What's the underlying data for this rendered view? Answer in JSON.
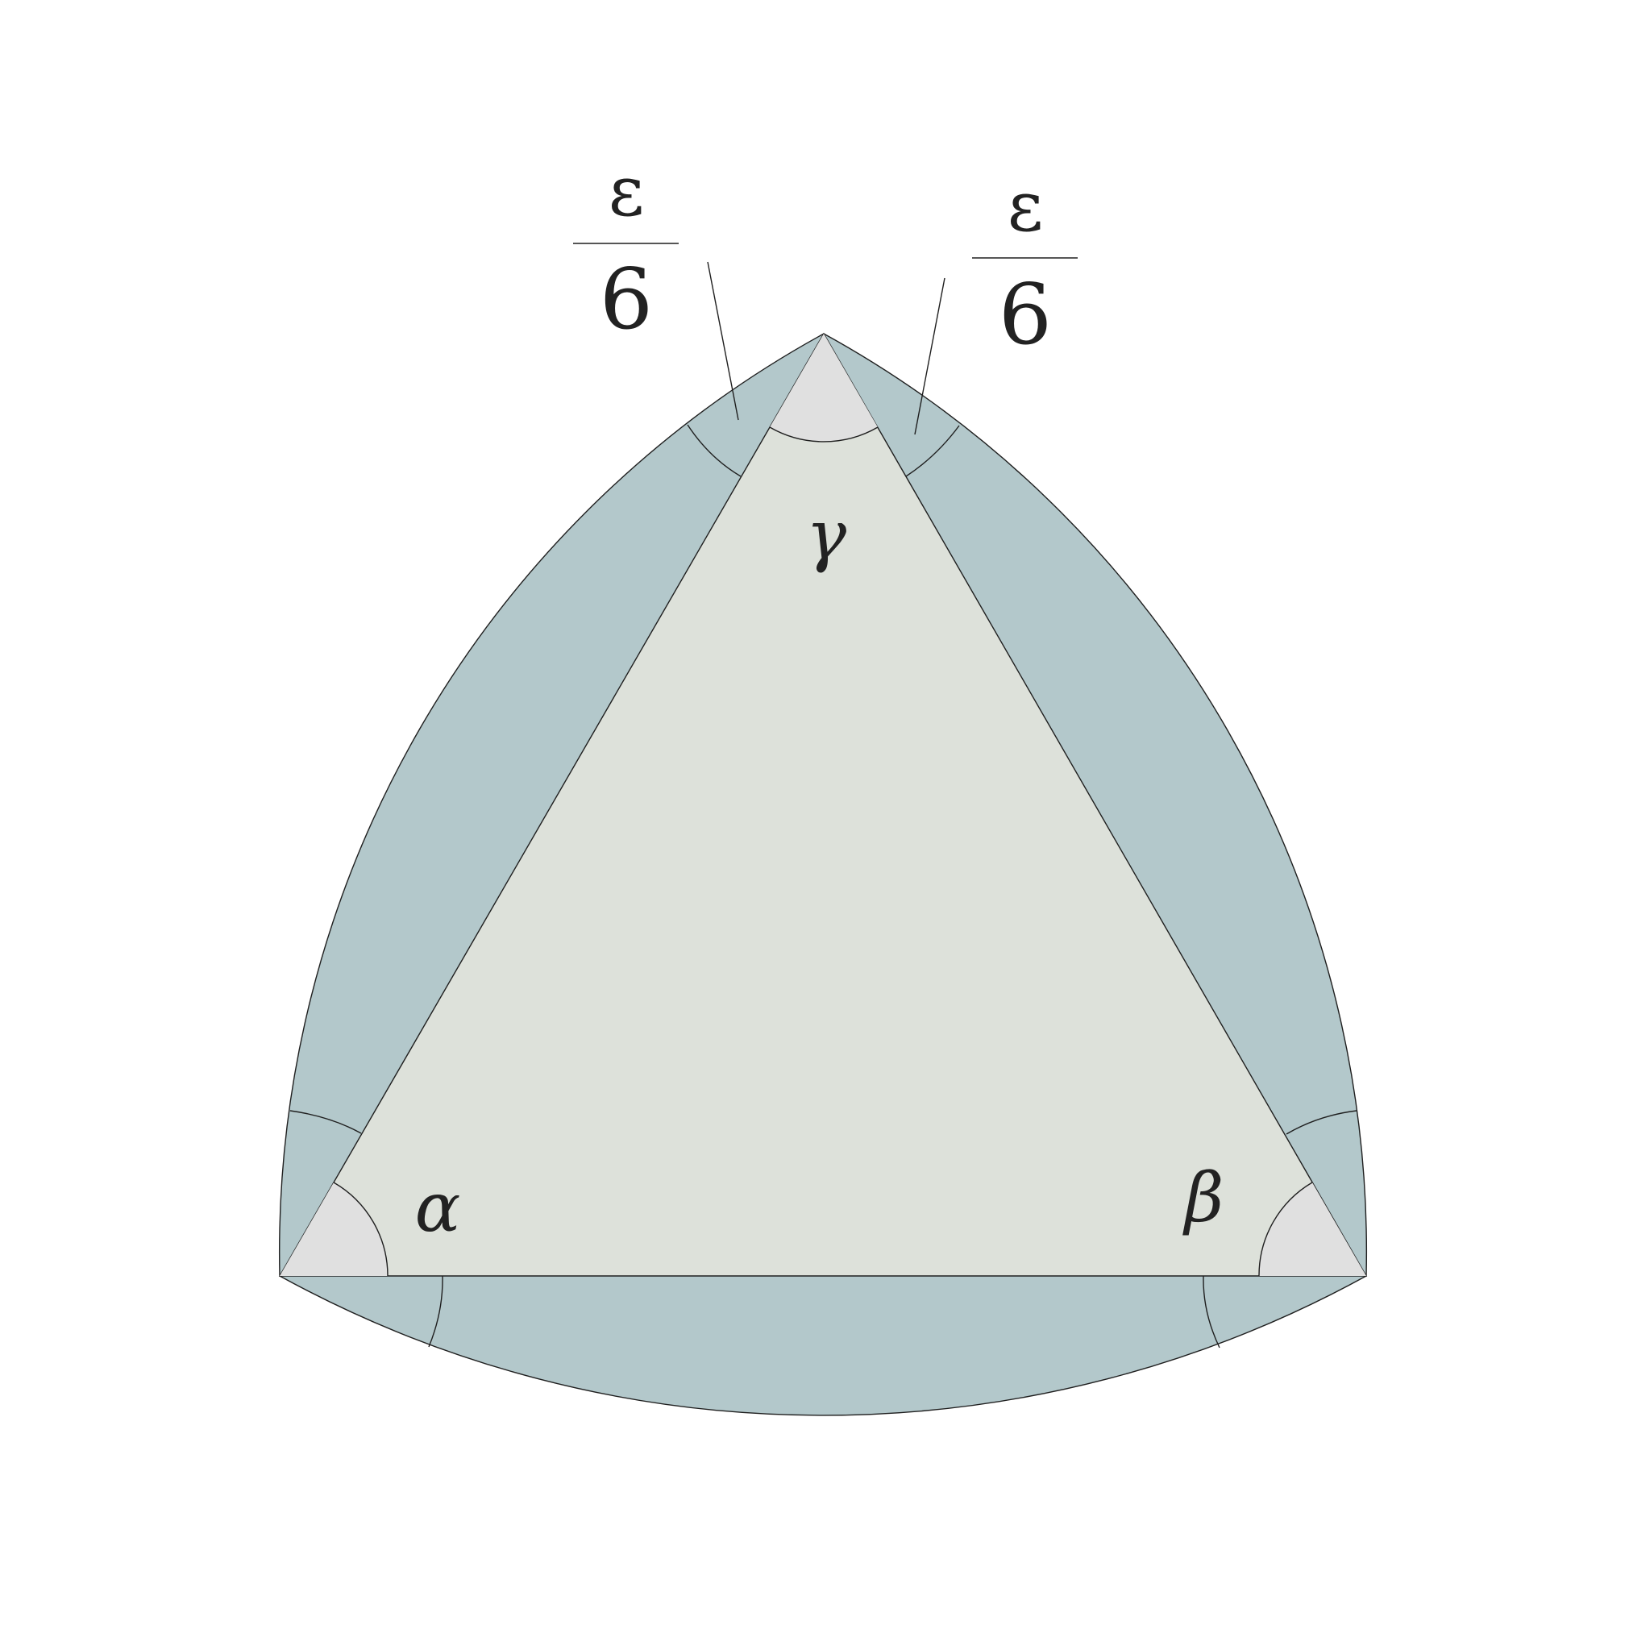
{
  "colors": {
    "background": "#ffffff",
    "band": "#b3c8cb",
    "triangle": "#dde1da",
    "corner": "#e0e0e0",
    "line": "#1f1f1f",
    "text": "#222222"
  },
  "labels": {
    "alpha": "α",
    "beta": "β",
    "gamma": "γ"
  },
  "fractions": [
    {
      "numerator": "ε",
      "denominator": "6"
    },
    {
      "numerator": "ε",
      "denominator": "6"
    }
  ]
}
